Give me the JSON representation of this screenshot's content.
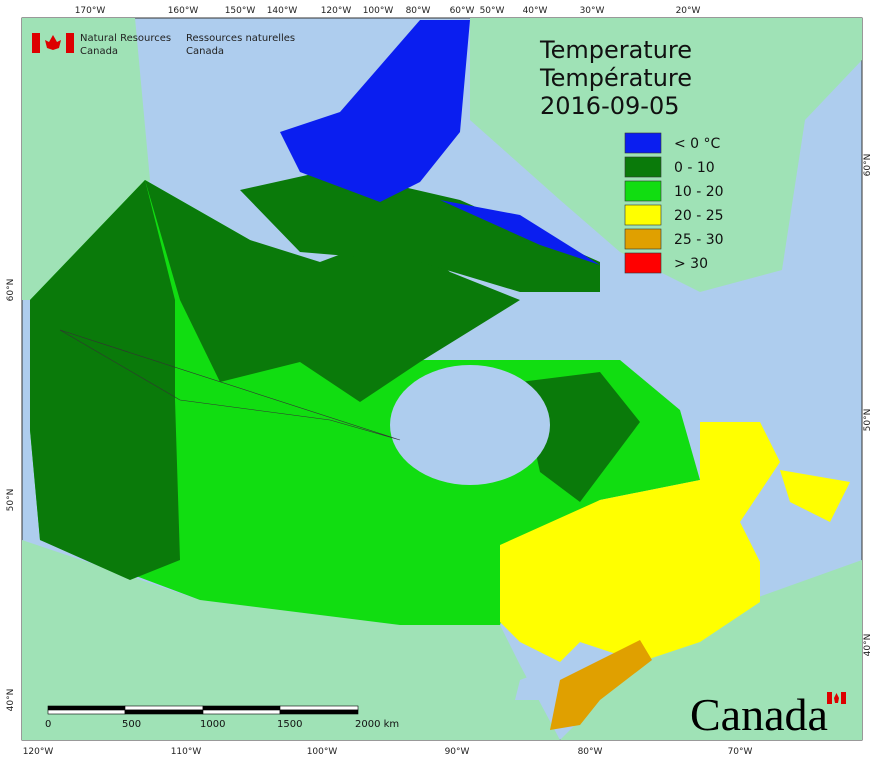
{
  "header": {
    "en": [
      "Natural Resources",
      "Canada"
    ],
    "fr": [
      "Ressources naturelles",
      "Canada"
    ]
  },
  "title": [
    "Temperature",
    "Température",
    "2016-09-05"
  ],
  "legend": [
    {
      "label": "< 0 °C",
      "color": "#0a1ef0"
    },
    {
      "label": "0 - 10",
      "color": "#0a7a0a"
    },
    {
      "label": "10 - 20",
      "color": "#11dd11"
    },
    {
      "label": "20 - 25",
      "color": "#ffff00"
    },
    {
      "label": "25 - 30",
      "color": "#e0a000"
    },
    {
      "label": "> 30",
      "color": "#ff0000"
    }
  ],
  "graticule": {
    "top": [
      "170°W",
      "160°W",
      "150°W",
      "140°W",
      "120°W",
      "100°W",
      "80°W",
      "60°W",
      "50°W",
      "40°W",
      "30°W",
      "20°W"
    ],
    "bottom": [
      "120°W",
      "110°W",
      "100°W",
      "90°W",
      "80°W",
      "70°W"
    ],
    "left": [
      "60°N",
      "50°N",
      "40°N"
    ],
    "right": [
      "60°N",
      "50°N",
      "40°N"
    ]
  },
  "scale_bar": [
    "0",
    "500",
    "1000",
    "1500",
    "2000  km"
  ],
  "wordmark": "Canada"
}
